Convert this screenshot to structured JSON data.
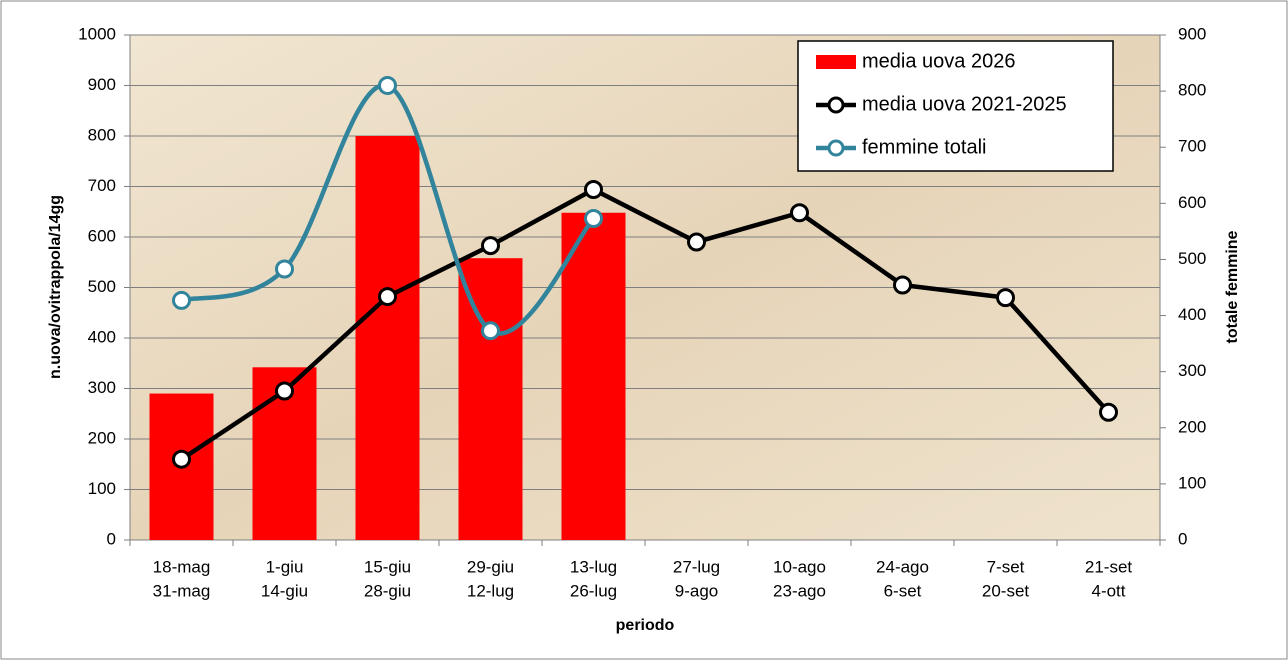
{
  "chart_data": {
    "type": "combo",
    "x_label": "periodo",
    "y_label": "n.uova/ovitrappola/14gg",
    "y2_label": "totale femmine",
    "categories": [
      [
        "18-mag",
        "31-mag"
      ],
      [
        "1-giu",
        "14-giu"
      ],
      [
        "15-giu",
        "28-giu"
      ],
      [
        "29-giu",
        "12-lug"
      ],
      [
        "13-lug",
        "26-lug"
      ],
      [
        "27-lug",
        "9-ago"
      ],
      [
        "10-ago",
        "23-ago"
      ],
      [
        "24-ago",
        "6-set"
      ],
      [
        "7-set",
        "20-set"
      ],
      [
        "21-set",
        "4-ott"
      ]
    ],
    "series": [
      {
        "name": "media uova 2026",
        "type": "bar",
        "color": "#ff0000",
        "values": [
          290,
          342,
          800,
          558,
          648,
          null,
          null,
          null,
          null,
          null
        ]
      },
      {
        "name": "media uova 2021-2025",
        "type": "line",
        "color": "#000000",
        "values": [
          160,
          295,
          482,
          583,
          694,
          590,
          648,
          505,
          480,
          253
        ]
      },
      {
        "name": "femmine totali",
        "type": "line",
        "smooth": true,
        "axis": "y2",
        "color": "#31849b",
        "values": [
          427,
          483,
          810,
          373,
          573,
          null,
          null,
          null,
          null,
          null
        ]
      }
    ],
    "ylim": [
      0,
      1000
    ],
    "yticks": [
      0,
      100,
      200,
      300,
      400,
      500,
      600,
      700,
      800,
      900,
      1000
    ],
    "y2lim": [
      0,
      900
    ],
    "y2ticks": [
      0,
      100,
      200,
      300,
      400,
      500,
      600,
      700,
      800,
      900
    ],
    "grid": true,
    "legend": "top-right"
  }
}
